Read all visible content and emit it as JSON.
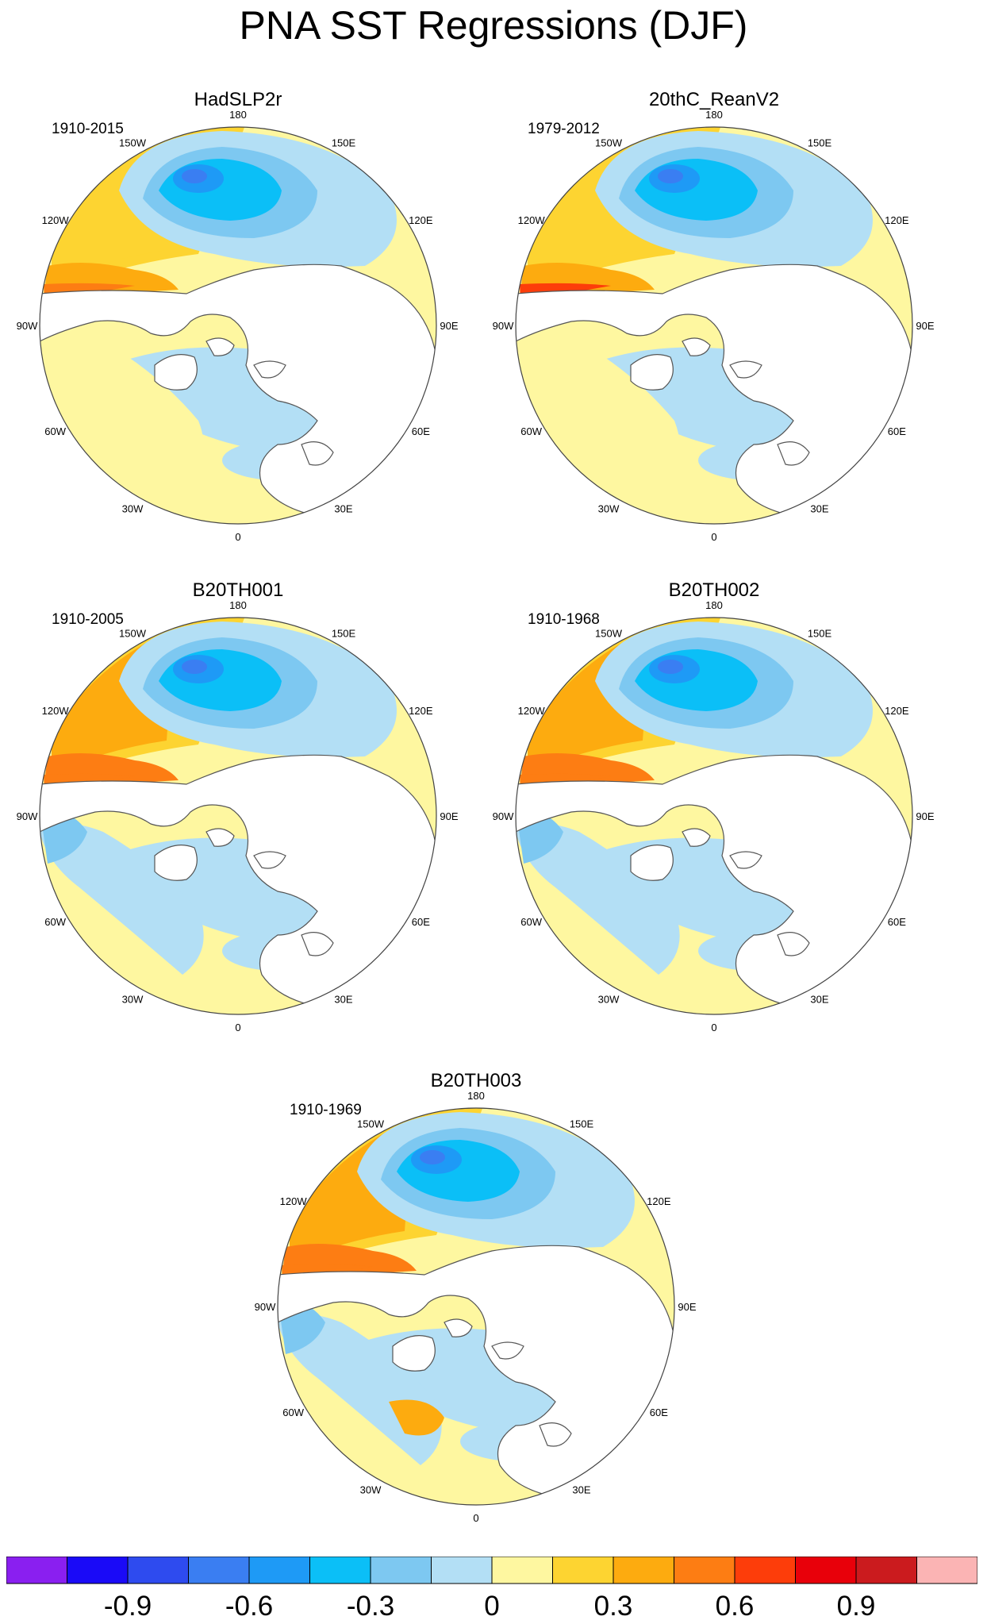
{
  "title": "PNA SST Regressions (DJF)",
  "panels": [
    {
      "name": "HadSLP2r",
      "period": "1910-2015"
    },
    {
      "name": "20thC_ReanV2",
      "period": "1979-2012"
    },
    {
      "name": "B20TH001",
      "period": "1910-2005"
    },
    {
      "name": "B20TH002",
      "period": "1910-1968"
    },
    {
      "name": "B20TH003",
      "period": "1910-1969"
    }
  ],
  "longitude_labels": [
    "180",
    "150E",
    "120E",
    "90E",
    "60E",
    "30E",
    "0",
    "30W",
    "60W",
    "90W",
    "120W",
    "150W"
  ],
  "colorbar": {
    "colors": [
      "#8a1ff0",
      "#1a0af7",
      "#2e4bef",
      "#3a7ef2",
      "#1e9af6",
      "#0bbff7",
      "#7dc8f1",
      "#b3dff5",
      "#fef7a0",
      "#fdd431",
      "#fdab0f",
      "#fd7d13",
      "#fd3d0a",
      "#e8000a",
      "#cb1b1e",
      "#fbb4b4"
    ],
    "labels": [
      {
        "text": "-0.9",
        "boundary": 2
      },
      {
        "text": "-0.6",
        "boundary": 4
      },
      {
        "text": "-0.3",
        "boundary": 6
      },
      {
        "text": "0",
        "boundary": 8
      },
      {
        "text": "0.3",
        "boundary": 10
      },
      {
        "text": "0.6",
        "boundary": 12
      },
      {
        "text": "0.9",
        "boundary": 14
      }
    ]
  },
  "colors": {
    "land": "#ffffff",
    "coast": "#555555",
    "border": "#444444"
  }
}
